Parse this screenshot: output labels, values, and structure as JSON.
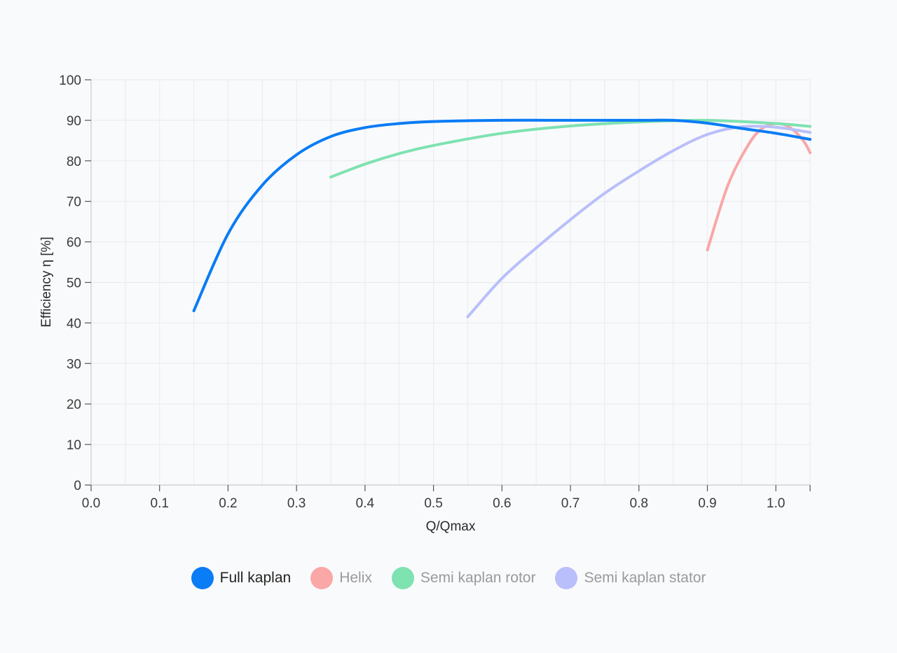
{
  "chart_data": {
    "type": "line",
    "xlabel": "Q/Qmax",
    "ylabel": "Efficiency η [%]",
    "xlim": [
      0,
      1.05
    ],
    "ylim": [
      0,
      100
    ],
    "x_ticks": [
      "0.0",
      "0.1",
      "0.2",
      "0.3",
      "0.4",
      "0.5",
      "0.6",
      "0.7",
      "0.8",
      "0.9",
      "1.0"
    ],
    "y_ticks": [
      "0",
      "10",
      "20",
      "30",
      "40",
      "50",
      "60",
      "70",
      "80",
      "90",
      "100"
    ],
    "grid": true,
    "legend_position": "bottom",
    "series": [
      {
        "name": "Full kaplan",
        "color": "#0a7cf5",
        "highlighted": true,
        "points": [
          [
            0.15,
            43
          ],
          [
            0.2,
            62
          ],
          [
            0.25,
            74
          ],
          [
            0.3,
            81.5
          ],
          [
            0.35,
            86
          ],
          [
            0.4,
            88.2
          ],
          [
            0.45,
            89.2
          ],
          [
            0.5,
            89.7
          ],
          [
            0.6,
            90
          ],
          [
            0.7,
            90
          ],
          [
            0.8,
            90
          ],
          [
            0.85,
            90
          ],
          [
            0.9,
            89.3
          ],
          [
            0.95,
            88
          ],
          [
            1.0,
            86.8
          ],
          [
            1.05,
            85.3
          ]
        ]
      },
      {
        "name": "Helix",
        "color": "#f9a7a7",
        "highlighted": false,
        "points": [
          [
            0.9,
            58
          ],
          [
            0.93,
            74
          ],
          [
            0.96,
            84
          ],
          [
            0.98,
            88
          ],
          [
            1.0,
            89.2
          ],
          [
            1.02,
            88.3
          ],
          [
            1.04,
            85
          ],
          [
            1.05,
            82
          ]
        ]
      },
      {
        "name": "Semi kaplan rotor",
        "color": "#7ee2b1",
        "highlighted": false,
        "points": [
          [
            0.35,
            76
          ],
          [
            0.4,
            79.2
          ],
          [
            0.45,
            81.8
          ],
          [
            0.5,
            83.8
          ],
          [
            0.6,
            86.8
          ],
          [
            0.7,
            88.6
          ],
          [
            0.8,
            89.6
          ],
          [
            0.9,
            90
          ],
          [
            1.0,
            89.2
          ],
          [
            1.05,
            88.5
          ]
        ]
      },
      {
        "name": "Semi kaplan stator",
        "color": "#b9bffa",
        "highlighted": false,
        "points": [
          [
            0.55,
            41.5
          ],
          [
            0.6,
            51
          ],
          [
            0.65,
            58.5
          ],
          [
            0.7,
            65.5
          ],
          [
            0.75,
            72
          ],
          [
            0.8,
            77.5
          ],
          [
            0.85,
            82.5
          ],
          [
            0.9,
            86.5
          ],
          [
            0.95,
            88.4
          ],
          [
            1.0,
            88.3
          ],
          [
            1.05,
            87
          ]
        ]
      }
    ]
  }
}
